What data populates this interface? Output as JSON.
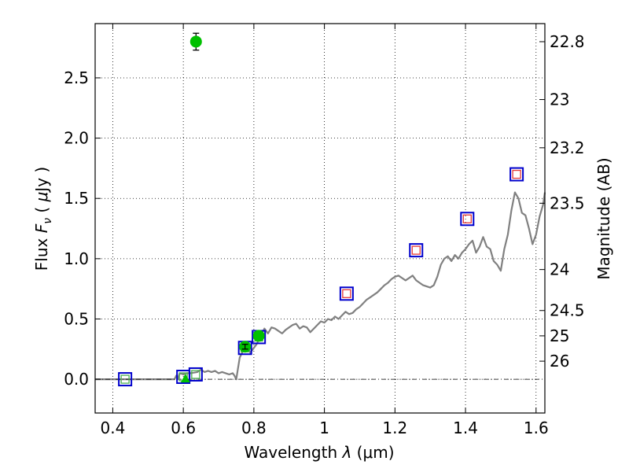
{
  "chart_data": {
    "type": "scatter",
    "xlabel": "Wavelength  λ (μm)",
    "ylabel": "Flux  F_ν  ( μJy )",
    "ylabel_parts": {
      "prefix": "Flux ",
      "symbol": "F",
      "sub": "ν",
      "unit_open": "  ( ",
      "unit_mu": "μ",
      "unit_rest": "Jy )"
    },
    "xlabel_parts": {
      "prefix": "Wavelength  ",
      "symbol": "λ",
      "unit": " (μm)"
    },
    "y2label": "Magnitude (AB)",
    "xlim": [
      0.35,
      1.625
    ],
    "ylim": [
      -0.28,
      2.95
    ],
    "grid": true,
    "x_ticks": [
      {
        "value": 0.4,
        "label": "0.4"
      },
      {
        "value": 0.6,
        "label": "0.6"
      },
      {
        "value": 0.8,
        "label": "0.8"
      },
      {
        "value": 1.0,
        "label": "1"
      },
      {
        "value": 1.2,
        "label": "1.2"
      },
      {
        "value": 1.4,
        "label": "1.4"
      },
      {
        "value": 1.6,
        "label": "1.6"
      }
    ],
    "y_ticks": [
      {
        "value": 0.0,
        "label": "0.0"
      },
      {
        "value": 0.5,
        "label": "0.5"
      },
      {
        "value": 1.0,
        "label": "1.0"
      },
      {
        "value": 1.5,
        "label": "1.5"
      },
      {
        "value": 2.0,
        "label": "2.0"
      },
      {
        "value": 2.5,
        "label": "2.5"
      }
    ],
    "magnitude_ticks": [
      {
        "flux": 2.8,
        "label": "22.8"
      },
      {
        "flux": 2.32,
        "label": "23"
      },
      {
        "flux": 1.92,
        "label": "23.2"
      },
      {
        "flux": 1.46,
        "label": "23.5"
      },
      {
        "flux": 0.91,
        "label": "24"
      },
      {
        "flux": 0.57,
        "label": "24.5"
      },
      {
        "flux": 0.36,
        "label": "25"
      },
      {
        "flux": 0.15,
        "label": "26"
      }
    ],
    "zero_line": 0.0,
    "series": [
      {
        "kind": "model_spectrum",
        "color": "#808080",
        "points": [
          [
            0.35,
            0.0
          ],
          [
            0.4,
            0.0
          ],
          [
            0.45,
            0.0
          ],
          [
            0.5,
            0.0
          ],
          [
            0.55,
            0.0
          ],
          [
            0.575,
            0.0
          ],
          [
            0.58,
            0.03
          ],
          [
            0.585,
            0.01
          ],
          [
            0.59,
            0.05
          ],
          [
            0.6,
            0.04
          ],
          [
            0.61,
            0.05
          ],
          [
            0.62,
            0.05
          ],
          [
            0.64,
            0.06
          ],
          [
            0.65,
            0.08
          ],
          [
            0.66,
            0.06
          ],
          [
            0.67,
            0.07
          ],
          [
            0.68,
            0.06
          ],
          [
            0.69,
            0.07
          ],
          [
            0.7,
            0.05
          ],
          [
            0.71,
            0.06
          ],
          [
            0.72,
            0.05
          ],
          [
            0.73,
            0.04
          ],
          [
            0.74,
            0.05
          ],
          [
            0.745,
            0.03
          ],
          [
            0.75,
            0.0
          ],
          [
            0.76,
            0.18
          ],
          [
            0.77,
            0.24
          ],
          [
            0.78,
            0.27
          ],
          [
            0.79,
            0.22
          ],
          [
            0.8,
            0.26
          ],
          [
            0.81,
            0.3
          ],
          [
            0.815,
            0.38
          ],
          [
            0.82,
            0.36
          ],
          [
            0.83,
            0.42
          ],
          [
            0.835,
            0.4
          ],
          [
            0.84,
            0.38
          ],
          [
            0.85,
            0.43
          ],
          [
            0.86,
            0.42
          ],
          [
            0.87,
            0.4
          ],
          [
            0.88,
            0.38
          ],
          [
            0.89,
            0.41
          ],
          [
            0.9,
            0.43
          ],
          [
            0.91,
            0.45
          ],
          [
            0.92,
            0.46
          ],
          [
            0.93,
            0.42
          ],
          [
            0.94,
            0.44
          ],
          [
            0.95,
            0.43
          ],
          [
            0.96,
            0.39
          ],
          [
            0.97,
            0.42
          ],
          [
            0.98,
            0.45
          ],
          [
            0.99,
            0.48
          ],
          [
            1.0,
            0.47
          ],
          [
            1.01,
            0.5
          ],
          [
            1.02,
            0.49
          ],
          [
            1.03,
            0.52
          ],
          [
            1.04,
            0.5
          ],
          [
            1.05,
            0.53
          ],
          [
            1.06,
            0.56
          ],
          [
            1.07,
            0.54
          ],
          [
            1.08,
            0.55
          ],
          [
            1.09,
            0.58
          ],
          [
            1.1,
            0.6
          ],
          [
            1.11,
            0.63
          ],
          [
            1.12,
            0.66
          ],
          [
            1.13,
            0.68
          ],
          [
            1.14,
            0.7
          ],
          [
            1.15,
            0.72
          ],
          [
            1.16,
            0.75
          ],
          [
            1.17,
            0.78
          ],
          [
            1.18,
            0.8
          ],
          [
            1.19,
            0.83
          ],
          [
            1.2,
            0.85
          ],
          [
            1.21,
            0.86
          ],
          [
            1.22,
            0.84
          ],
          [
            1.23,
            0.82
          ],
          [
            1.24,
            0.84
          ],
          [
            1.25,
            0.86
          ],
          [
            1.26,
            0.82
          ],
          [
            1.27,
            0.8
          ],
          [
            1.28,
            0.78
          ],
          [
            1.29,
            0.77
          ],
          [
            1.3,
            0.76
          ],
          [
            1.31,
            0.78
          ],
          [
            1.32,
            0.85
          ],
          [
            1.33,
            0.95
          ],
          [
            1.34,
            1.0
          ],
          [
            1.35,
            1.02
          ],
          [
            1.36,
            0.98
          ],
          [
            1.37,
            1.03
          ],
          [
            1.38,
            1.0
          ],
          [
            1.39,
            1.05
          ],
          [
            1.4,
            1.08
          ],
          [
            1.41,
            1.12
          ],
          [
            1.42,
            1.15
          ],
          [
            1.43,
            1.05
          ],
          [
            1.44,
            1.1
          ],
          [
            1.45,
            1.18
          ],
          [
            1.46,
            1.1
          ],
          [
            1.47,
            1.08
          ],
          [
            1.48,
            0.98
          ],
          [
            1.49,
            0.95
          ],
          [
            1.5,
            0.9
          ],
          [
            1.51,
            1.08
          ],
          [
            1.52,
            1.2
          ],
          [
            1.53,
            1.4
          ],
          [
            1.54,
            1.55
          ],
          [
            1.55,
            1.5
          ],
          [
            1.56,
            1.38
          ],
          [
            1.57,
            1.36
          ],
          [
            1.58,
            1.25
          ],
          [
            1.59,
            1.12
          ],
          [
            1.6,
            1.2
          ],
          [
            1.61,
            1.35
          ],
          [
            1.62,
            1.45
          ],
          [
            1.625,
            1.55
          ]
        ]
      },
      {
        "kind": "model_photometry",
        "edge_color": "#0000cc",
        "inner_color": "#4caf50",
        "points": [
          {
            "x": 0.435,
            "y": 0.0
          },
          {
            "x": 0.6,
            "y": 0.02
          },
          {
            "x": 0.635,
            "y": 0.04
          },
          {
            "x": 0.775,
            "y": 0.26
          },
          {
            "x": 0.814,
            "y": 0.35
          }
        ]
      },
      {
        "kind": "model_photometry_ir",
        "edge_color": "#0000cc",
        "inner_color": "#e53935",
        "points": [
          {
            "x": 1.063,
            "y": 0.71
          },
          {
            "x": 1.26,
            "y": 1.07
          },
          {
            "x": 1.405,
            "y": 1.33
          },
          {
            "x": 1.545,
            "y": 1.7
          }
        ]
      },
      {
        "kind": "observed",
        "color": "#00c000",
        "points": [
          {
            "x": 0.636,
            "y": 2.8,
            "err": 0.07
          },
          {
            "x": 0.775,
            "y": 0.27,
            "err": 0.02
          },
          {
            "x": 0.814,
            "y": 0.36,
            "err": 0.0
          }
        ]
      },
      {
        "kind": "upper_limit",
        "color": "#00c000",
        "points": [
          {
            "x": 0.606,
            "y": 0.0
          }
        ]
      }
    ]
  }
}
